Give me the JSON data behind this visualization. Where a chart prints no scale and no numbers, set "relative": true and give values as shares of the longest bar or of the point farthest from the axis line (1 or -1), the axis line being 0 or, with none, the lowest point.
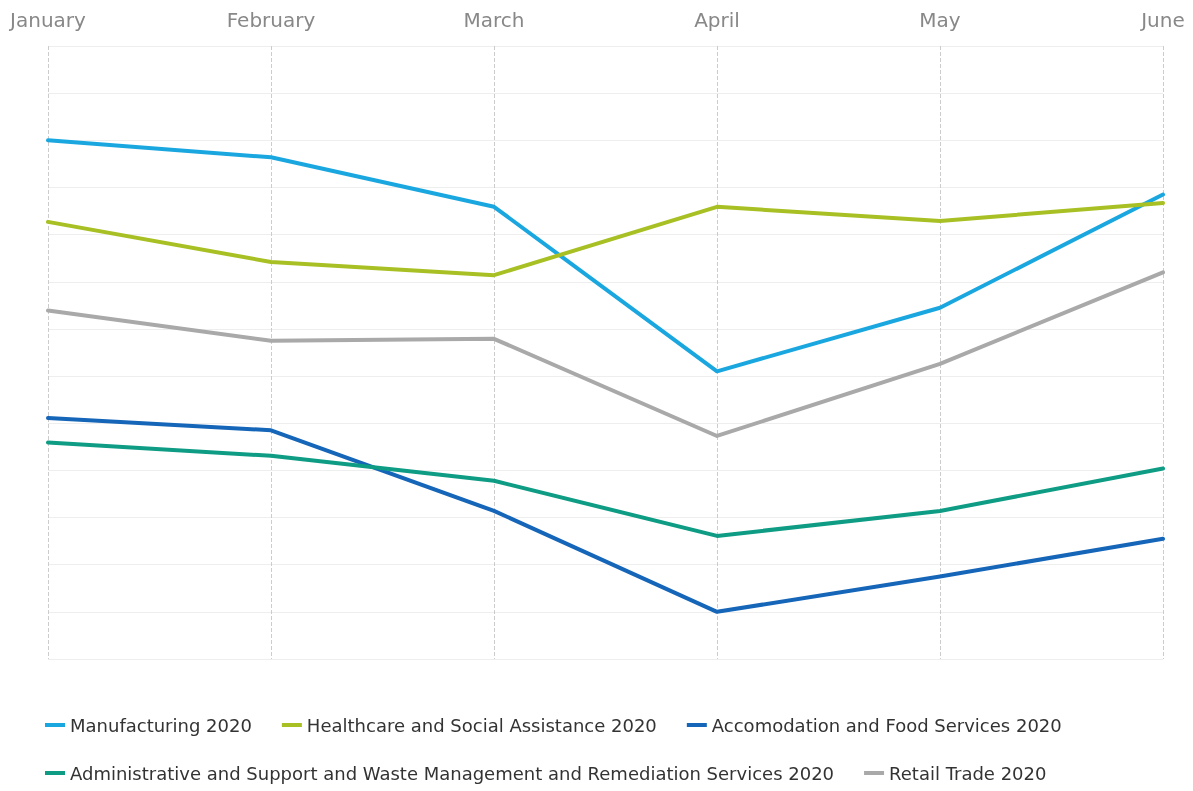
{
  "chart_data": {
    "type": "line",
    "relative": true,
    "grid": true,
    "legend": "bottom",
    "marker": "none",
    "line_style": "solid",
    "categories": [
      "January",
      "February",
      "March",
      "April",
      "May",
      "June"
    ],
    "series": [
      {
        "name": "Manufacturing 2020",
        "color": "#1aa7e0",
        "values": [
          1.0,
          0.964,
          0.859,
          0.51,
          0.645,
          0.885
        ]
      },
      {
        "name": "Healthcare and Social Assistance 2020",
        "color": "#a8c023",
        "values": [
          0.827,
          0.742,
          0.714,
          0.859,
          0.829,
          0.867
        ]
      },
      {
        "name": "Accomodation and Food Services 2020",
        "color": "#1565b8",
        "values": [
          0.411,
          0.385,
          0.214,
          0.0,
          0.075,
          0.155
        ]
      },
      {
        "name": "Administrative and Support and Waste Management and Remediation Services 2020",
        "color": "#0e9c84",
        "values": [
          0.359,
          0.331,
          0.278,
          0.161,
          0.214,
          0.304
        ]
      },
      {
        "name": "Retail Trade 2020",
        "color": "#a9a9a9",
        "values": [
          0.639,
          0.575,
          0.579,
          0.373,
          0.526,
          0.72
        ]
      }
    ]
  }
}
